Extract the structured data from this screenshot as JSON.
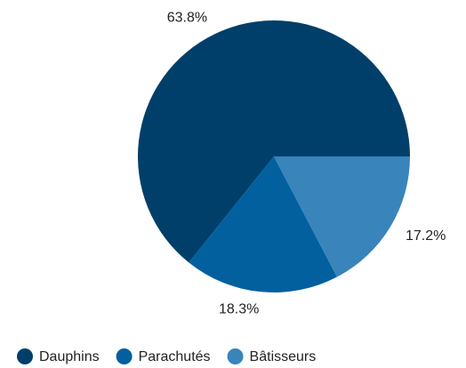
{
  "chart_data": {
    "type": "pie",
    "categories": [
      "Dauphins",
      "Parachutés",
      "Bâtisseurs"
    ],
    "values": [
      63.8,
      18.3,
      17.2
    ],
    "value_labels": [
      "63.8%",
      "18.3%",
      "17.2%"
    ],
    "colors": [
      "#003f6a",
      "#02609f",
      "#3884bb"
    ],
    "legend": "bottom"
  }
}
